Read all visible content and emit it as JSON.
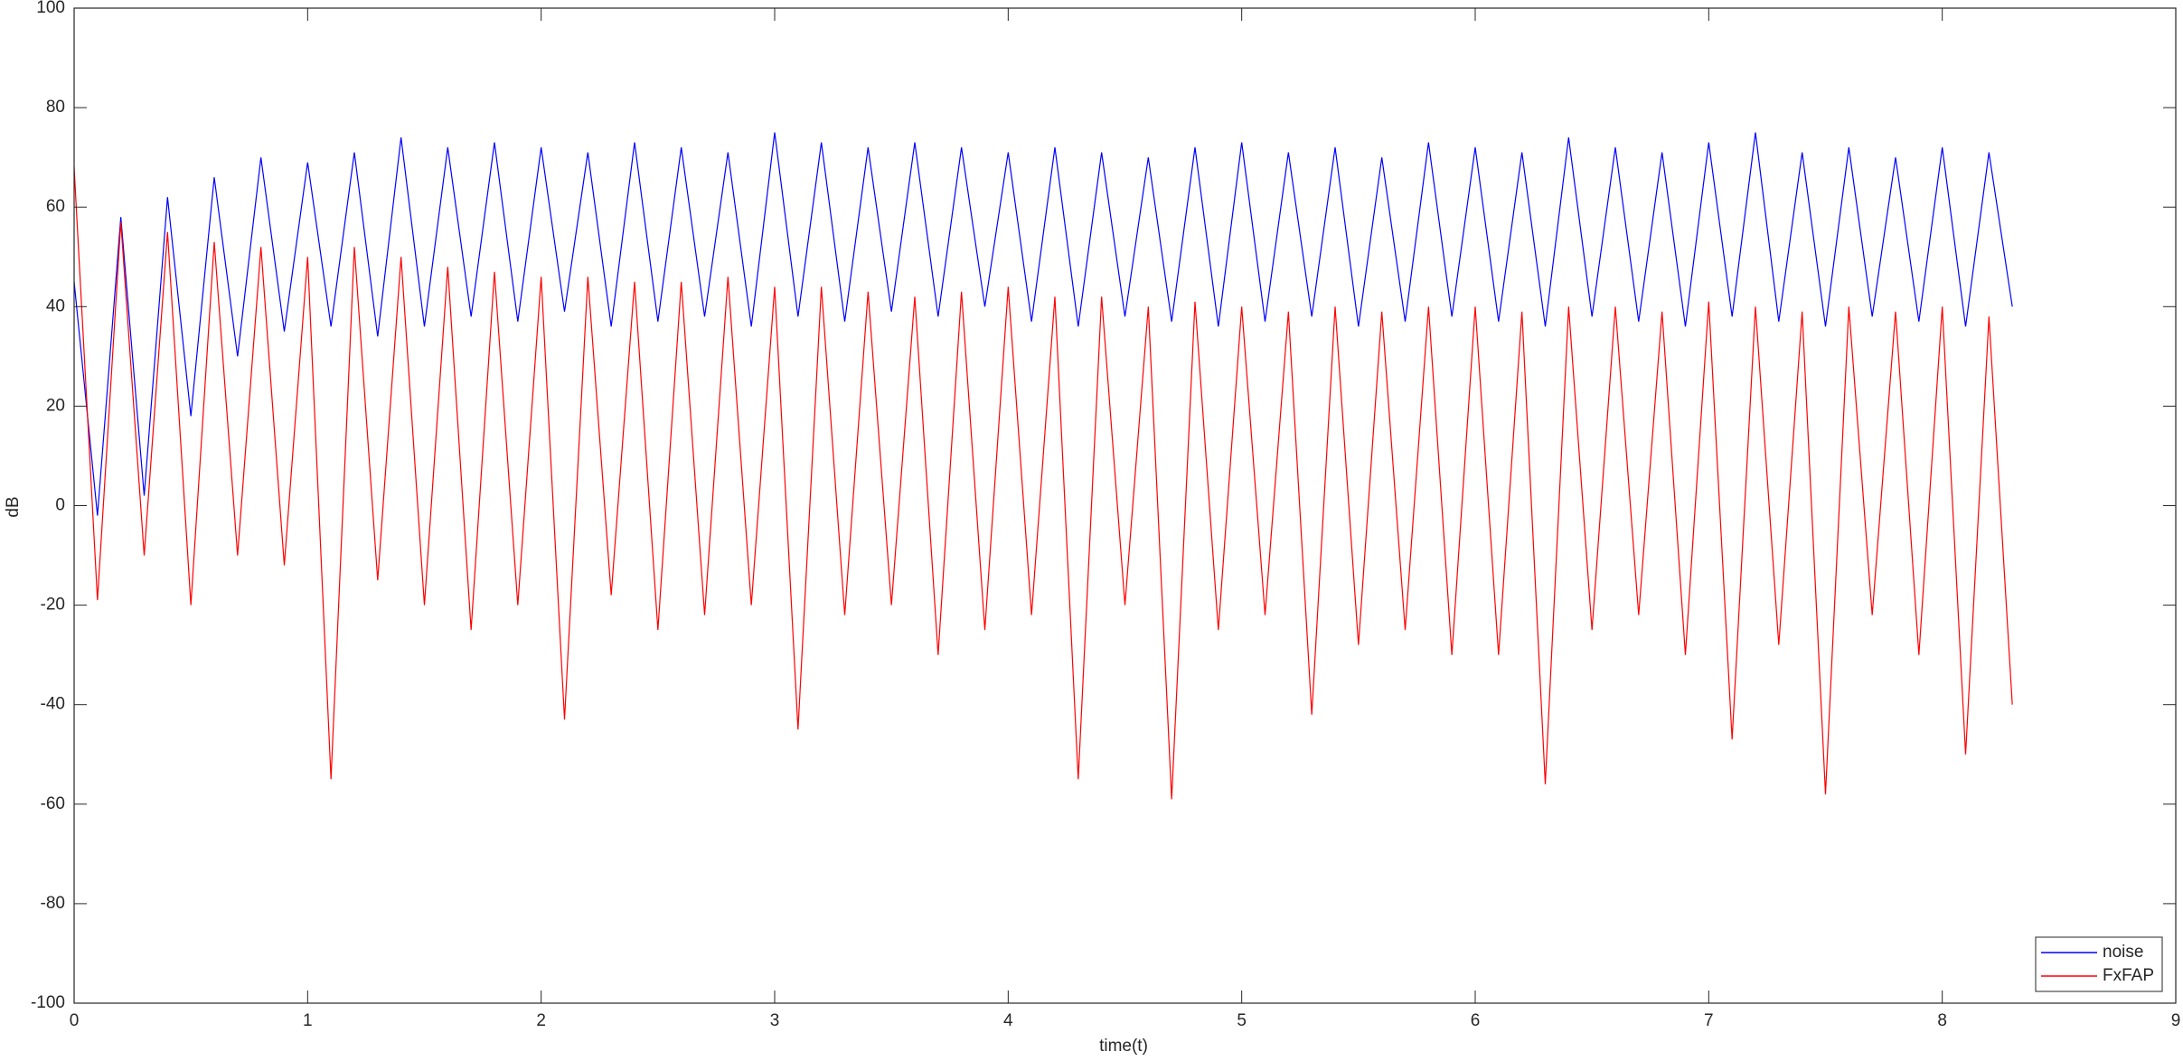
{
  "chart_data": {
    "type": "line",
    "xlabel": "time(t)",
    "ylabel": "dB",
    "x": [
      0,
      0.1,
      0.2,
      0.3,
      0.4,
      0.5,
      0.6,
      0.7,
      0.8,
      0.9,
      1,
      1.1,
      1.2,
      1.3,
      1.4,
      1.5,
      1.6,
      1.7,
      1.8,
      1.9,
      2,
      2.1,
      2.2,
      2.3,
      2.4,
      2.5,
      2.6,
      2.7,
      2.8,
      2.9,
      3,
      3.1,
      3.2,
      3.3,
      3.4,
      3.5,
      3.6,
      3.7,
      3.8,
      3.9,
      4,
      4.1,
      4.2,
      4.3,
      4.4,
      4.5,
      4.6,
      4.7,
      4.8,
      4.9,
      5,
      5.1,
      5.2,
      5.3,
      5.4,
      5.5,
      5.6,
      5.7,
      5.8,
      5.9,
      6,
      6.1,
      6.2,
      6.3,
      6.4,
      6.5,
      6.6,
      6.7,
      6.8,
      6.9,
      7,
      7.1,
      7.2,
      7.3,
      7.4,
      7.5,
      7.6,
      7.7,
      7.8,
      7.9,
      8,
      8.1,
      8.2,
      8.3
    ],
    "series": [
      {
        "name": "noise",
        "color": "#0000ff",
        "values": [
          45,
          -2,
          58,
          2,
          62,
          18,
          66,
          30,
          70,
          35,
          69,
          36,
          71,
          34,
          74,
          36,
          72,
          38,
          73,
          37,
          72,
          39,
          71,
          36,
          73,
          37,
          72,
          38,
          71,
          36,
          75,
          38,
          73,
          37,
          72,
          39,
          73,
          38,
          72,
          40,
          71,
          37,
          72,
          36,
          71,
          38,
          70,
          37,
          72,
          36,
          73,
          37,
          71,
          38,
          72,
          36,
          70,
          37,
          73,
          38,
          72,
          37,
          71,
          36,
          74,
          38,
          72,
          37,
          71,
          36,
          73,
          38,
          75,
          37,
          71,
          36,
          72,
          38,
          70,
          37,
          72,
          36,
          71,
          40
        ]
      },
      {
        "name": "FxFAP",
        "color": "#ff0000",
        "values": [
          68,
          -19,
          57,
          -10,
          55,
          -20,
          53,
          -10,
          52,
          -12,
          50,
          -55,
          52,
          -15,
          50,
          -20,
          48,
          -25,
          47,
          -20,
          46,
          -43,
          46,
          -18,
          45,
          -25,
          45,
          -22,
          46,
          -20,
          44,
          -45,
          44,
          -22,
          43,
          -20,
          42,
          -30,
          43,
          -25,
          44,
          -22,
          42,
          -55,
          42,
          -20,
          40,
          -59,
          41,
          -25,
          40,
          -22,
          39,
          -42,
          40,
          -28,
          39,
          -25,
          40,
          -30,
          40,
          -30,
          39,
          -56,
          40,
          -25,
          40,
          -22,
          39,
          -30,
          41,
          -47,
          40,
          -28,
          39,
          -58,
          40,
          -22,
          39,
          -30,
          40,
          -50,
          38,
          -40
        ]
      }
    ],
    "xlim": [
      0,
      9
    ],
    "xticks": [
      0,
      1,
      2,
      3,
      4,
      5,
      6,
      7,
      8,
      9
    ],
    "ylim": [
      -100,
      100
    ],
    "yticks": [
      -100,
      -80,
      -60,
      -40,
      -20,
      0,
      20,
      40,
      60,
      80,
      100
    ],
    "legend": "lower right"
  }
}
